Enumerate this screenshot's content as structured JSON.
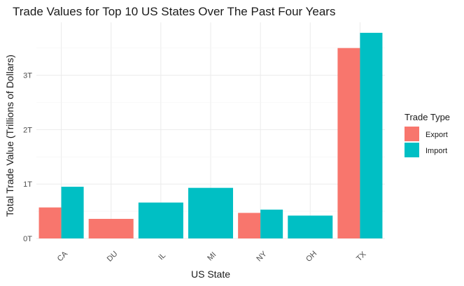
{
  "chart_data": {
    "type": "bar",
    "title": "Trade Values for Top 10 US States Over The Past Four Years",
    "xlabel": "US State",
    "ylabel": "Total Trade Value (Trillions of Dollars)",
    "categories": [
      "CA",
      "DU",
      "IL",
      "MI",
      "NY",
      "OH",
      "TX"
    ],
    "y_tick_values": [
      0,
      1,
      2,
      3
    ],
    "y_tick_labels": [
      "0T",
      "1T",
      "2T",
      "3T"
    ],
    "ylim": [
      0,
      3.82
    ],
    "grid": true,
    "legend": {
      "title": "Trade Type",
      "position": "right"
    },
    "series": [
      {
        "name": "Export",
        "color": "#F8766D",
        "values": [
          0.57,
          0.36,
          null,
          null,
          0.47,
          null,
          3.5
        ]
      },
      {
        "name": "Import",
        "color": "#00BFC4",
        "values": [
          0.95,
          null,
          0.66,
          0.93,
          0.53,
          0.42,
          3.78
        ]
      }
    ]
  }
}
